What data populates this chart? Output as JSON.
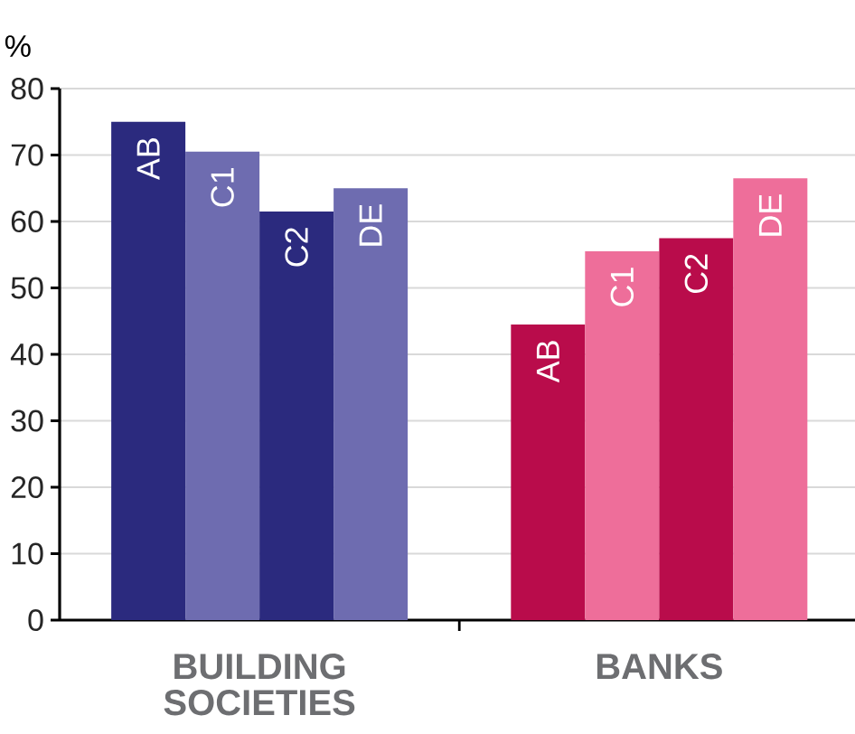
{
  "chart_data": {
    "type": "bar",
    "ylabel": "%",
    "categories": [
      "BUILDING SOCIETIES",
      "BANKS"
    ],
    "series": [
      {
        "name": "AB",
        "colors": [
          "#2b2a7e",
          "#b90c4b"
        ],
        "values": [
          75,
          44.5
        ]
      },
      {
        "name": "C1",
        "colors": [
          "#6e6cb0",
          "#ee6e9a"
        ],
        "values": [
          70.5,
          55.5
        ]
      },
      {
        "name": "C2",
        "colors": [
          "#2b2a7e",
          "#b90c4b"
        ],
        "values": [
          61.5,
          57.5
        ]
      },
      {
        "name": "DE",
        "colors": [
          "#6e6cb0",
          "#ee6e9a"
        ],
        "values": [
          65,
          66.5
        ]
      }
    ],
    "ylim": [
      0,
      80
    ],
    "yticks": [
      0,
      10,
      20,
      30,
      40,
      50,
      60,
      70,
      80
    ],
    "grid": "y"
  }
}
